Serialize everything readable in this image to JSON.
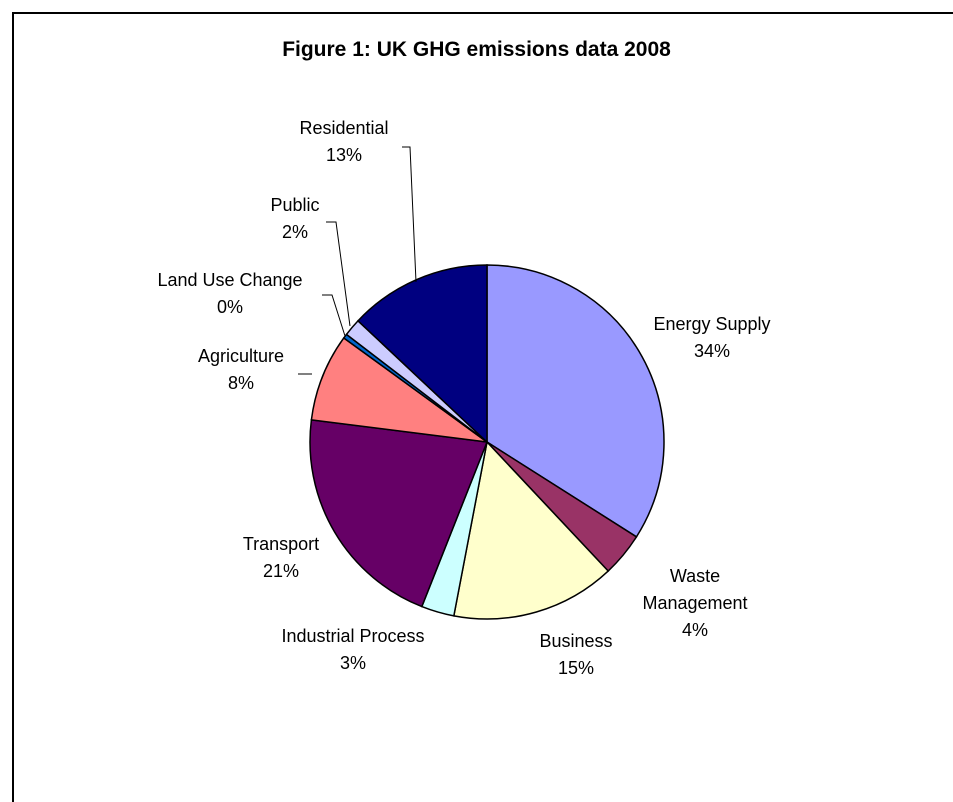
{
  "chart_data": {
    "type": "pie",
    "title": "Figure 1: UK GHG emissions data 2008",
    "legend": "none",
    "slices": [
      {
        "name": "Energy Supply",
        "value": 34,
        "label": "34%",
        "color": "#9999FF"
      },
      {
        "name": "Waste Management",
        "value": 4,
        "label": "4%",
        "color": "#993366"
      },
      {
        "name": "Business",
        "value": 15,
        "label": "15%",
        "color": "#FFFFCC"
      },
      {
        "name": "Industrial Process",
        "value": 3,
        "label": "3%",
        "color": "#CCFFFF"
      },
      {
        "name": "Transport",
        "value": 21,
        "label": "21%",
        "color": "#660066"
      },
      {
        "name": "Agriculture",
        "value": 8,
        "label": "8%",
        "color": "#FF8080"
      },
      {
        "name": "Land Use Change",
        "value": 0.4,
        "label": "0%",
        "color": "#0066CC"
      },
      {
        "name": "Public",
        "value": 1.6,
        "label": "2%",
        "color": "#CCCCFF"
      },
      {
        "name": "Residential",
        "value": 13,
        "label": "13%",
        "color": "#000080"
      }
    ]
  }
}
